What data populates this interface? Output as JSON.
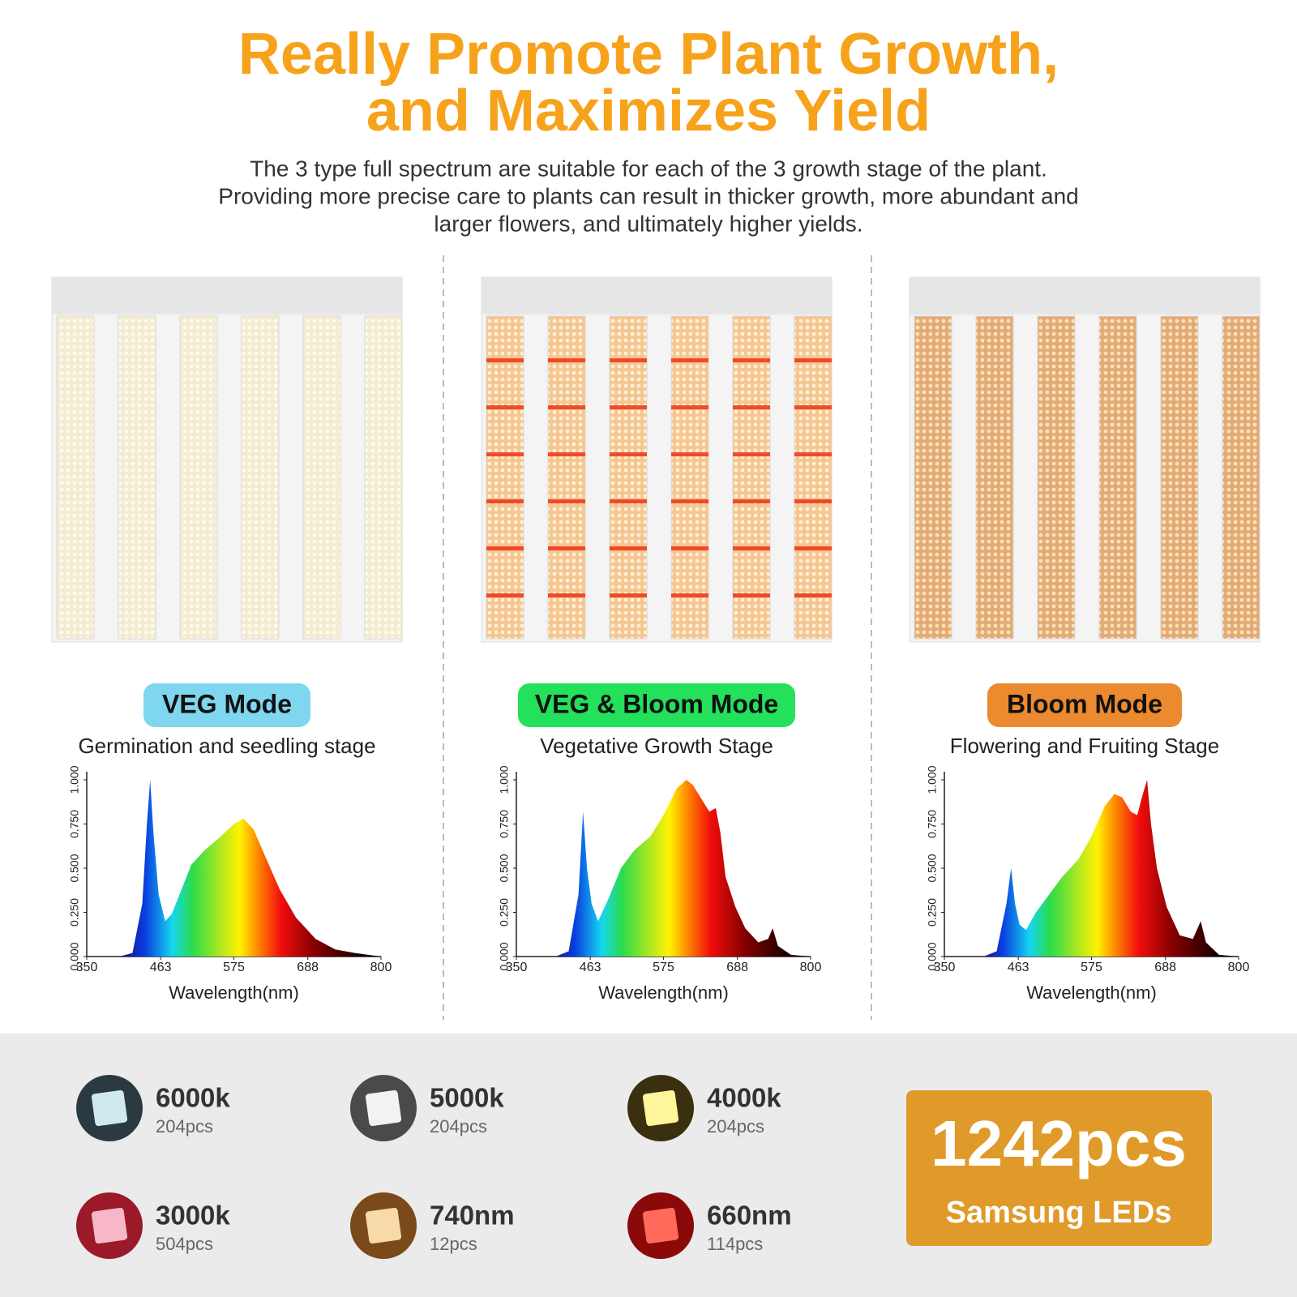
{
  "header": {
    "title": [
      "Really Promote Plant Growth,",
      "and Maximizes Yield"
    ],
    "subtitle": [
      "The 3 type full spectrum are suitable for each of the 3 growth stage of the plant.",
      "Providing more precise care to plants can result in thicker growth, more abundant and",
      "larger flowers, and ultimately higher yields."
    ]
  },
  "panels": [
    {
      "mode": "VEG Mode",
      "mode_color": "#7fd6ef",
      "stage": "Germination and seedling stage",
      "chart": {
        "type": "area",
        "x": [
          350,
          400,
          420,
          435,
          442,
          447,
          452,
          460,
          470,
          480,
          495,
          510,
          530,
          555,
          575,
          590,
          605,
          625,
          645,
          670,
          700,
          730,
          760,
          800
        ],
        "values": [
          0,
          0,
          0.02,
          0.3,
          0.75,
          1.0,
          0.7,
          0.35,
          0.2,
          0.24,
          0.38,
          0.52,
          0.6,
          0.68,
          0.75,
          0.78,
          0.72,
          0.55,
          0.38,
          0.22,
          0.1,
          0.04,
          0.02,
          0
        ],
        "xlim": [
          350,
          800
        ],
        "ylim": [
          0,
          1
        ],
        "xticks": [
          350,
          463,
          575,
          688,
          800
        ],
        "yticks": [
          {
            "value": 0,
            "label": "0.000"
          },
          {
            "value": 0.25,
            "label": "0.250"
          },
          {
            "value": 0.5,
            "label": "0.500"
          },
          {
            "value": 0.75,
            "label": "0.750"
          },
          {
            "value": 1,
            "label": "1.000"
          }
        ],
        "xlabel": "Wavelength(nm)"
      }
    },
    {
      "mode": "VEG & Bloom Mode",
      "mode_color": "#23e15b",
      "stage": "Vegetative Growth Stage",
      "chart": {
        "type": "area",
        "x": [
          350,
          410,
          430,
          445,
          452,
          458,
          465,
          475,
          490,
          510,
          530,
          555,
          575,
          595,
          610,
          620,
          635,
          645,
          655,
          662,
          670,
          685,
          700,
          720,
          735,
          742,
          750,
          770,
          800
        ],
        "values": [
          0,
          0,
          0.03,
          0.35,
          0.82,
          0.5,
          0.3,
          0.2,
          0.32,
          0.5,
          0.6,
          0.68,
          0.8,
          0.95,
          1.0,
          0.97,
          0.88,
          0.82,
          0.84,
          0.7,
          0.45,
          0.28,
          0.16,
          0.08,
          0.1,
          0.16,
          0.06,
          0.01,
          0
        ],
        "xlim": [
          350,
          800
        ],
        "ylim": [
          0,
          1
        ],
        "xticks": [
          350,
          463,
          575,
          688,
          800
        ],
        "yticks": [
          {
            "value": 0,
            "label": "0.000"
          },
          {
            "value": 0.25,
            "label": "0.250"
          },
          {
            "value": 0.5,
            "label": "0.500"
          },
          {
            "value": 0.75,
            "label": "0.750"
          },
          {
            "value": 1,
            "label": "1.000"
          }
        ],
        "xlabel": "Wavelength(nm)"
      }
    },
    {
      "mode": "Bloom Mode",
      "mode_color": "#ec8a2f",
      "stage": "Flowering and Fruiting Stage",
      "chart": {
        "type": "area",
        "x": [
          350,
          410,
          430,
          445,
          452,
          458,
          465,
          475,
          490,
          510,
          530,
          555,
          575,
          595,
          610,
          622,
          635,
          645,
          652,
          660,
          666,
          675,
          690,
          710,
          730,
          742,
          750,
          770,
          800
        ],
        "values": [
          0,
          0,
          0.03,
          0.3,
          0.5,
          0.3,
          0.18,
          0.15,
          0.25,
          0.35,
          0.45,
          0.55,
          0.68,
          0.85,
          0.92,
          0.9,
          0.82,
          0.8,
          0.9,
          1.0,
          0.75,
          0.5,
          0.28,
          0.12,
          0.1,
          0.2,
          0.08,
          0.01,
          0
        ],
        "xlim": [
          350,
          800
        ],
        "ylim": [
          0,
          1
        ],
        "xticks": [
          350,
          463,
          575,
          688,
          800
        ],
        "yticks": [
          {
            "value": 0,
            "label": "0.000"
          },
          {
            "value": 0.25,
            "label": "0.250"
          },
          {
            "value": 0.5,
            "label": "0.500"
          },
          {
            "value": 0.75,
            "label": "0.750"
          },
          {
            "value": 1,
            "label": "1.000"
          }
        ],
        "xlabel": "Wavelength(nm)"
      }
    }
  ],
  "leds": [
    {
      "name": "6000k",
      "count": "204pcs"
    },
    {
      "name": "5000k",
      "count": "204pcs"
    },
    {
      "name": "4000k",
      "count": "204pcs"
    },
    {
      "name": "3000k",
      "count": "504pcs"
    },
    {
      "name": "740nm",
      "count": "12pcs"
    },
    {
      "name": "660nm",
      "count": "114pcs"
    }
  ],
  "total": {
    "count": "1242pcs",
    "label": "Samsung LEDs"
  }
}
